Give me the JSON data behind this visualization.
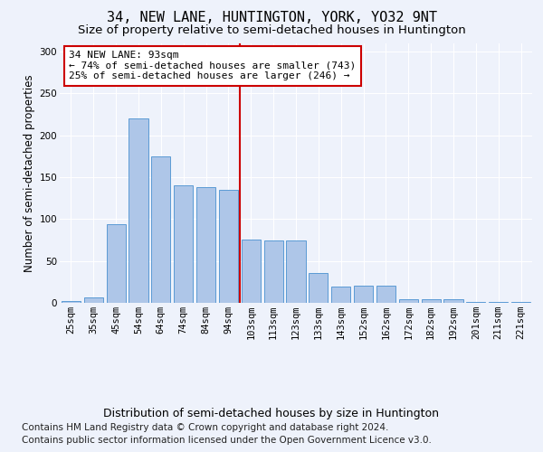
{
  "title": "34, NEW LANE, HUNTINGTON, YORK, YO32 9NT",
  "subtitle": "Size of property relative to semi-detached houses in Huntington",
  "xlabel": "Distribution of semi-detached houses by size in Huntington",
  "ylabel": "Number of semi-detached properties",
  "categories": [
    "25sqm",
    "35sqm",
    "45sqm",
    "54sqm",
    "64sqm",
    "74sqm",
    "84sqm",
    "94sqm",
    "103sqm",
    "113sqm",
    "123sqm",
    "133sqm",
    "143sqm",
    "152sqm",
    "162sqm",
    "172sqm",
    "182sqm",
    "192sqm",
    "201sqm",
    "211sqm",
    "221sqm"
  ],
  "values": [
    2,
    6,
    94,
    220,
    175,
    140,
    138,
    135,
    76,
    74,
    74,
    36,
    19,
    20,
    21,
    4,
    4,
    4,
    1,
    1,
    1
  ],
  "bar_color": "#aec6e8",
  "bar_edge_color": "#5b9bd5",
  "vline_color": "#cc0000",
  "annotation_line1": "34 NEW LANE: 93sqm",
  "annotation_line2": "← 74% of semi-detached houses are smaller (743)",
  "annotation_line3": "25% of semi-detached houses are larger (246) →",
  "annotation_box_color": "#ffffff",
  "annotation_box_edge": "#cc0000",
  "footer_line1": "Contains HM Land Registry data © Crown copyright and database right 2024.",
  "footer_line2": "Contains public sector information licensed under the Open Government Licence v3.0.",
  "ylim": [
    0,
    310
  ],
  "background_color": "#eef2fb",
  "grid_color": "#ffffff",
  "title_fontsize": 11,
  "subtitle_fontsize": 9.5,
  "ylabel_fontsize": 8.5,
  "xlabel_fontsize": 9,
  "tick_fontsize": 7.5,
  "annotation_fontsize": 8,
  "footer_fontsize": 7.5,
  "vline_x": 7.5
}
